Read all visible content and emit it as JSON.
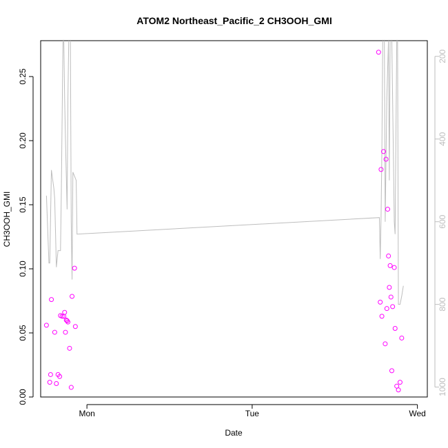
{
  "chart_data": {
    "type": "scatter",
    "title": "ATOM2 Northeast_Pacific_2 CH3OOH_GMI",
    "xlabel": "Date",
    "ylabel": "CH3OOH_GMI",
    "x_unit": "days",
    "x_ticks": [
      {
        "value": 1.0,
        "label": "Mon"
      },
      {
        "value": 2.0,
        "label": "Tue"
      },
      {
        "value": 3.0,
        "label": "Wed"
      }
    ],
    "xlim": [
      0.72,
      3.06
    ],
    "ylim": [
      0,
      0.278
    ],
    "y_ticks": [
      0.0,
      0.05,
      0.1,
      0.15,
      0.2,
      0.25
    ],
    "y_tick_labels": [
      "0.00",
      "0.05",
      "0.10",
      "0.15",
      "0.20",
      "0.25"
    ],
    "y2_ticks": [
      200,
      400,
      600,
      800,
      1000
    ],
    "y2_tick_labels": [
      "200",
      "400",
      "600",
      "800",
      "1000"
    ],
    "y2lim": [
      1024,
      162
    ],
    "grid": false,
    "series": [
      {
        "kind": "points",
        "color": "#ff00ff",
        "axis": "left",
        "points": [
          [
            0.755,
            0.056
          ],
          [
            0.775,
            0.0115
          ],
          [
            0.78,
            0.0175
          ],
          [
            0.785,
            0.076
          ],
          [
            0.805,
            0.0505
          ],
          [
            0.815,
            0.0105
          ],
          [
            0.825,
            0.0175
          ],
          [
            0.835,
            0.016
          ],
          [
            0.84,
            0.0635
          ],
          [
            0.85,
            0.063
          ],
          [
            0.86,
            0.063
          ],
          [
            0.865,
            0.066
          ],
          [
            0.87,
            0.0505
          ],
          [
            0.875,
            0.06
          ],
          [
            0.88,
            0.0595
          ],
          [
            0.885,
            0.0585
          ],
          [
            0.895,
            0.038
          ],
          [
            0.905,
            0.0075
          ],
          [
            0.91,
            0.0785
          ],
          [
            0.925,
            0.1005
          ],
          [
            0.93,
            0.055
          ],
          [
            2.765,
            0.269
          ],
          [
            2.775,
            0.074
          ],
          [
            2.78,
            0.1775
          ],
          [
            2.785,
            0.063
          ],
          [
            2.795,
            0.1915
          ],
          [
            2.805,
            0.0415
          ],
          [
            2.81,
            0.1855
          ],
          [
            2.815,
            0.069
          ],
          [
            2.82,
            0.1465
          ],
          [
            2.825,
            0.11
          ],
          [
            2.83,
            0.0855
          ],
          [
            2.835,
            0.1025
          ],
          [
            2.84,
            0.078
          ],
          [
            2.845,
            0.0205
          ],
          [
            2.85,
            0.0705
          ],
          [
            2.86,
            0.101
          ],
          [
            2.865,
            0.0535
          ],
          [
            2.875,
            0.0085
          ],
          [
            2.885,
            0.0055
          ],
          [
            2.895,
            0.0115
          ],
          [
            2.905,
            0.046
          ]
        ]
      },
      {
        "kind": "line",
        "color": "#bdbdbd",
        "axis": "right",
        "points": [
          [
            0.755,
            537
          ],
          [
            0.765,
            645
          ],
          [
            0.77,
            700
          ],
          [
            0.775,
            700
          ],
          [
            0.785,
            475
          ],
          [
            0.8,
            520
          ],
          [
            0.805,
            545
          ],
          [
            0.815,
            710
          ],
          [
            0.825,
            670
          ],
          [
            0.83,
            670
          ],
          [
            0.84,
            670
          ],
          [
            0.845,
            530
          ],
          [
            0.855,
            160
          ],
          [
            0.86,
            160
          ],
          [
            0.865,
            300
          ],
          [
            0.87,
            400
          ],
          [
            0.88,
            570
          ],
          [
            0.885,
            300
          ],
          [
            0.89,
            160
          ],
          [
            0.9,
            160
          ],
          [
            0.905,
            600
          ],
          [
            0.91,
            740
          ],
          [
            0.915,
            480
          ],
          [
            0.925,
            490
          ],
          [
            0.935,
            500
          ],
          [
            0.94,
            630
          ],
          [
            2.77,
            590
          ],
          [
            2.775,
            690
          ],
          [
            2.78,
            590
          ],
          [
            2.785,
            430
          ],
          [
            2.79,
            160
          ],
          [
            2.8,
            160
          ],
          [
            2.805,
            600
          ],
          [
            2.815,
            300
          ],
          [
            2.825,
            160
          ],
          [
            2.83,
            500
          ],
          [
            2.835,
            160
          ],
          [
            2.845,
            160
          ],
          [
            2.855,
            450
          ],
          [
            2.86,
            600
          ],
          [
            2.865,
            630
          ],
          [
            2.875,
            160
          ],
          [
            2.88,
            160
          ],
          [
            2.885,
            800
          ],
          [
            2.895,
            800
          ],
          [
            2.905,
            780
          ],
          [
            2.915,
            755
          ]
        ]
      }
    ]
  }
}
